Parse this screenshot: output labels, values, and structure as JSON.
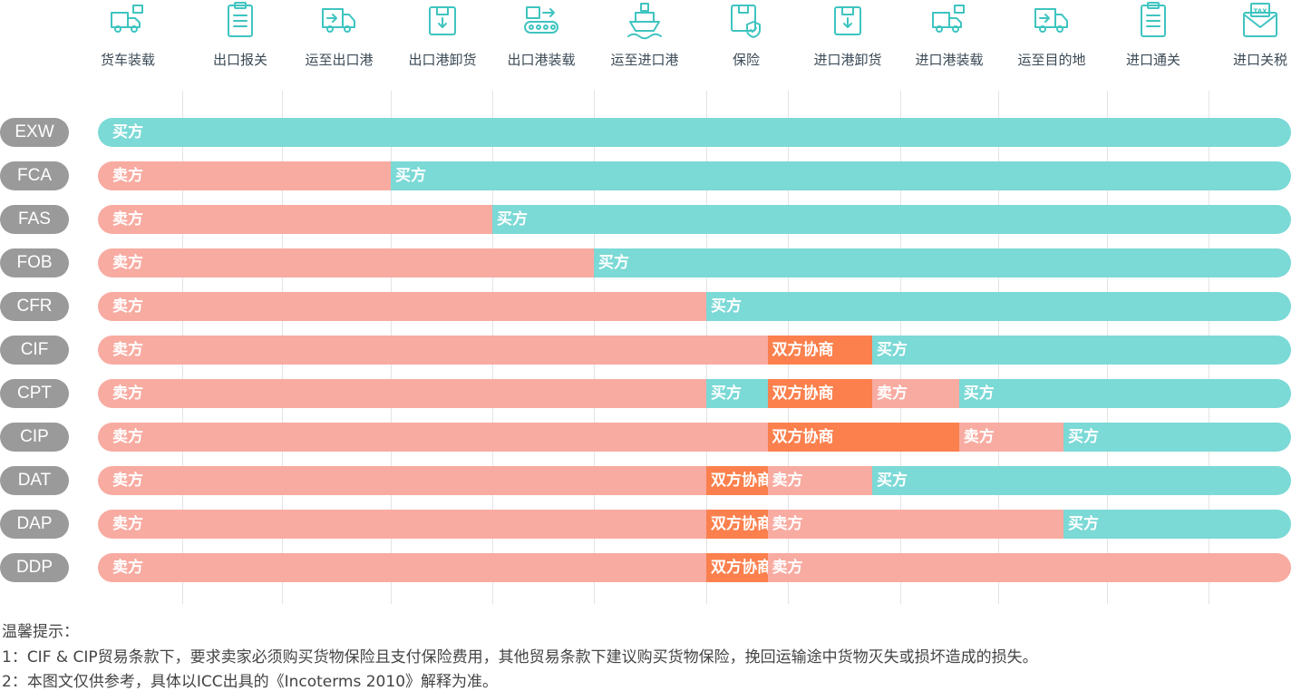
{
  "colors": {
    "buyer": "#7bd9d6",
    "seller": "#f8aba1",
    "negotiate": "#fb804d",
    "term_pill": "#9a9a9a",
    "icon": "#3fc4c0"
  },
  "steps": [
    {
      "label": "货车装载",
      "icon": "truck-loading-icon"
    },
    {
      "label": "出口报关",
      "icon": "clipboard-icon"
    },
    {
      "label": "运至出口港",
      "icon": "delivery-truck-icon"
    },
    {
      "label": "出口港卸货",
      "icon": "box-down-icon"
    },
    {
      "label": "出口港装载",
      "icon": "conveyor-icon"
    },
    {
      "label": "运至进口港",
      "icon": "ship-icon"
    },
    {
      "label": "保险",
      "icon": "shield-box-icon"
    },
    {
      "label": "进口港卸货",
      "icon": "box-down-icon"
    },
    {
      "label": "进口港装载",
      "icon": "truck-loading-icon"
    },
    {
      "label": "运至目的地",
      "icon": "delivery-truck-icon"
    },
    {
      "label": "进口通关",
      "icon": "clipboard-icon"
    },
    {
      "label": "进口关税",
      "icon": "tax-envelope-icon"
    }
  ],
  "rows": [
    {
      "term": "EXW",
      "segments": [
        {
          "party": "buyer",
          "label": "买方",
          "from": 0,
          "to": 12
        }
      ]
    },
    {
      "term": "FCA",
      "segments": [
        {
          "party": "seller",
          "label": "卖方",
          "from": 0,
          "to": 3
        },
        {
          "party": "buyer",
          "label": "买方",
          "from": 3,
          "to": 12
        }
      ]
    },
    {
      "term": "FAS",
      "segments": [
        {
          "party": "seller",
          "label": "卖方",
          "from": 0,
          "to": 4
        },
        {
          "party": "buyer",
          "label": "买方",
          "from": 4,
          "to": 12
        }
      ]
    },
    {
      "term": "FOB",
      "segments": [
        {
          "party": "seller",
          "label": "卖方",
          "from": 0,
          "to": 5
        },
        {
          "party": "buyer",
          "label": "买方",
          "from": 5,
          "to": 12
        }
      ]
    },
    {
      "term": "CFR",
      "segments": [
        {
          "party": "seller",
          "label": "卖方",
          "from": 0,
          "to": 6
        },
        {
          "party": "buyer",
          "label": "买方",
          "from": 6,
          "to": 12
        }
      ]
    },
    {
      "term": "CIF",
      "segments": [
        {
          "party": "seller",
          "label": "卖方",
          "from": 0,
          "to": 6.75
        },
        {
          "party": "negotiate",
          "label": "双方协商",
          "from": 6.75,
          "to": 7.75
        },
        {
          "party": "buyer",
          "label": "买方",
          "from": 7.75,
          "to": 12
        }
      ]
    },
    {
      "term": "CPT",
      "segments": [
        {
          "party": "seller",
          "label": "卖方",
          "from": 0,
          "to": 6
        },
        {
          "party": "buyer",
          "label": "买方",
          "from": 6,
          "to": 6.75
        },
        {
          "party": "negotiate",
          "label": "双方协商",
          "from": 6.75,
          "to": 7.75
        },
        {
          "party": "seller",
          "label": "卖方",
          "from": 7.75,
          "to": 8.6
        },
        {
          "party": "buyer",
          "label": "买方",
          "from": 8.6,
          "to": 12
        }
      ]
    },
    {
      "term": "CIP",
      "segments": [
        {
          "party": "seller",
          "label": "卖方",
          "from": 0,
          "to": 6.75
        },
        {
          "party": "negotiate",
          "label": "双方协商",
          "from": 6.75,
          "to": 8.6
        },
        {
          "party": "seller",
          "label": "卖方",
          "from": 8.6,
          "to": 9.6
        },
        {
          "party": "buyer",
          "label": "买方",
          "from": 9.6,
          "to": 12
        }
      ]
    },
    {
      "term": "DAT",
      "segments": [
        {
          "party": "seller",
          "label": "卖方",
          "from": 0,
          "to": 6
        },
        {
          "party": "negotiate",
          "label": "双方协商",
          "from": 6,
          "to": 6.75
        },
        {
          "party": "seller",
          "label": "卖方",
          "from": 6.75,
          "to": 7.75
        },
        {
          "party": "buyer",
          "label": "买方",
          "from": 7.75,
          "to": 12
        }
      ]
    },
    {
      "term": "DAP",
      "segments": [
        {
          "party": "seller",
          "label": "卖方",
          "from": 0,
          "to": 6
        },
        {
          "party": "negotiate",
          "label": "双方协商",
          "from": 6,
          "to": 6.75
        },
        {
          "party": "seller",
          "label": "卖方",
          "from": 6.75,
          "to": 9.6
        },
        {
          "party": "buyer",
          "label": "买方",
          "from": 9.6,
          "to": 12
        }
      ]
    },
    {
      "term": "DDP",
      "segments": [
        {
          "party": "seller",
          "label": "卖方",
          "from": 0,
          "to": 6
        },
        {
          "party": "negotiate",
          "label": "双方协商",
          "from": 6,
          "to": 6.75
        },
        {
          "party": "seller",
          "label": "卖方",
          "from": 6.75,
          "to": 12
        }
      ]
    }
  ],
  "notes": {
    "title": "温馨提示：",
    "line1": "1：CIF & CIP贸易条款下，要求卖家必须购买货物保险且支付保险费用，其他贸易条款下建议购买货物保险，挽回运输途中货物灭失或损坏造成的损失。",
    "line2": "2：本图文仅供参考，具体以ICC出具的《Incoterms 2010》解释为准。"
  }
}
